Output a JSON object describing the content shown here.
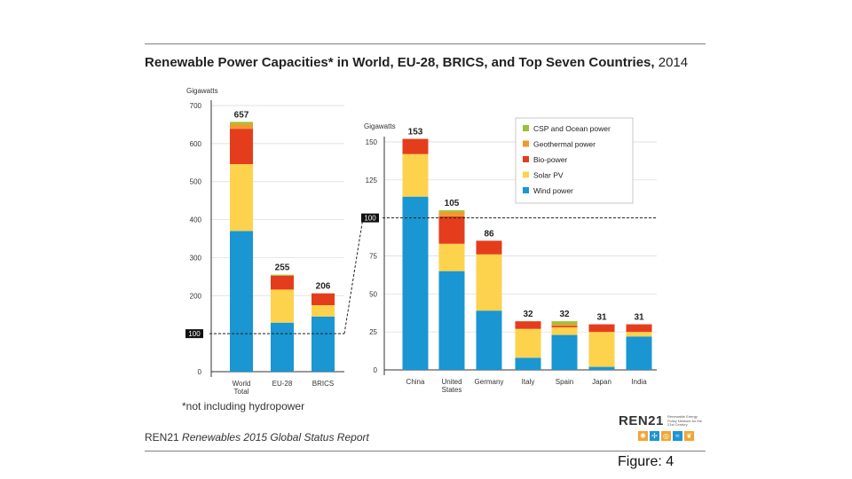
{
  "title": {
    "bold": "Renewable Power Capacities* in World, EU-28, BRICS, and Top Seven Countries,",
    "year": "2014"
  },
  "footnote": "*not including hydropower",
  "source": {
    "org": "REN21",
    "report": "Renewables 2015 Global Status Report"
  },
  "figure_label": "Figure: 4",
  "logo": {
    "name": "REN21",
    "tagline": "Renewable Energy Policy Network for the 21st Century"
  },
  "chart_data": [
    {
      "type": "bar",
      "stacked": true,
      "ylabel": "Gigawatts",
      "ylim": [
        0,
        700
      ],
      "yticks": [
        "0",
        "100",
        "200",
        "300",
        "400",
        "500",
        "600",
        "700"
      ],
      "reference_line": {
        "value": 100,
        "label": "100"
      },
      "categories": [
        "World Total",
        "EU-28",
        "BRICS"
      ],
      "totals": [
        "657",
        "255",
        "206"
      ],
      "series": [
        {
          "name": "Wind power",
          "color": "#1a96d2",
          "values": [
            370,
            129,
            145
          ]
        },
        {
          "name": "Solar PV",
          "color": "#fdd24d",
          "values": [
            176,
            87,
            30
          ]
        },
        {
          "name": "Bio-power",
          "color": "#e43d1d",
          "values": [
            93,
            36,
            31
          ]
        },
        {
          "name": "Geothermal power",
          "color": "#ee9a2e",
          "values": [
            13,
            1,
            0
          ]
        },
        {
          "name": "CSP and Ocean power",
          "color": "#9dc030",
          "values": [
            5,
            2,
            0
          ]
        }
      ]
    },
    {
      "type": "bar",
      "stacked": true,
      "ylabel": "Gigawatts",
      "ylim": [
        0,
        150
      ],
      "yticks": [
        "0",
        "25",
        "50",
        "75",
        "100",
        "125",
        "150"
      ],
      "reference_line": {
        "value": 100,
        "label": "100"
      },
      "categories": [
        "China",
        "United States",
        "Germany",
        "Italy",
        "Spain",
        "Japan",
        "India"
      ],
      "totals": [
        "153",
        "105",
        "86",
        "32",
        "32",
        "31",
        "31"
      ],
      "legend": {
        "position": "top-right",
        "entries": [
          "CSP and Ocean power",
          "Geothermal power",
          "Bio-power",
          "Solar PV",
          "Wind power"
        ]
      },
      "series": [
        {
          "name": "Wind power",
          "color": "#1a96d2",
          "values": [
            114,
            65,
            39,
            8,
            23,
            2,
            22
          ]
        },
        {
          "name": "Solar PV",
          "color": "#fdd24d",
          "values": [
            28,
            18,
            37,
            19,
            5,
            23,
            3
          ]
        },
        {
          "name": "Bio-power",
          "color": "#e43d1d",
          "values": [
            10,
            18,
            9,
            5,
            1,
            5,
            5
          ]
        },
        {
          "name": "Geothermal power",
          "color": "#ee9a2e",
          "values": [
            0,
            3,
            0,
            0,
            1,
            0,
            0
          ]
        },
        {
          "name": "CSP and Ocean power",
          "color": "#9dc030",
          "values": [
            0,
            1,
            0,
            0,
            2,
            0,
            0
          ]
        }
      ]
    }
  ]
}
